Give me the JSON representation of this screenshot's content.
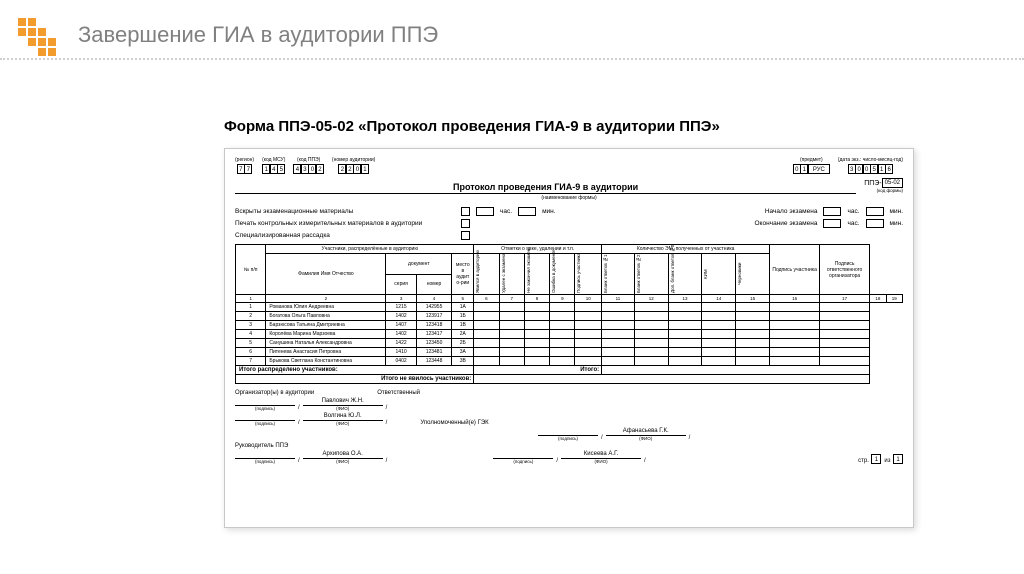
{
  "page": {
    "title": "Завершение ГИА в аудитории ППЭ",
    "form_caption": "Форма ППЭ-05-02 «Протокол проведения ГИА-9 в аудитории ППЭ»"
  },
  "header": {
    "region_label": "(регион)",
    "region": [
      "7",
      "7"
    ],
    "msu_label": "(код МСУ)",
    "msu": [
      "1",
      "4",
      "5"
    ],
    "ppe_label": "(код ППЭ)",
    "ppe": [
      "4",
      "3",
      "0",
      "2"
    ],
    "aud_label": "(номер аудитории)",
    "aud": [
      "2",
      "2",
      "0",
      "1"
    ],
    "subj_label": "(предмет)",
    "subj_code": [
      "0",
      "1"
    ],
    "subj_name": "РУС",
    "date_label": "(дата экз.: число-месяц-год)",
    "date": [
      "3",
      "0",
      "0",
      "5",
      "1",
      "6"
    ],
    "form_code_prefix": "ППЭ-",
    "form_code": "05-02",
    "form_code_sub": "(код формы)"
  },
  "protocol": {
    "title": "Протокол проведения ГИА-9 в аудитории",
    "subtitle": "(наименование формы)"
  },
  "info": {
    "opened": "Вскрыты экзаменационные материалы",
    "printed": "Печать контрольных измерительных материалов в аудитории",
    "spec": "Специализированная рассадка",
    "exam_start": "Начало экзамена",
    "exam_end": "Окончание экзамена",
    "hour": "час.",
    "min": "мин."
  },
  "table": {
    "h_participants": "Участники, распределённые в аудиторию",
    "h_marks": "Отметки о явке, удалении и т.п.",
    "h_em": "Количество ЭМ, полученных от участника",
    "h_np": "№ п/п",
    "h_fio": "Фамилия Имя Отчество",
    "h_doc": "документ",
    "h_seria": "серия",
    "h_nomer": "номер",
    "h_place": "место в аудит о-рии",
    "h_c1": "Явился в аудиторию",
    "h_c2": "Удален с экзамена",
    "h_c3": "Не закончил экзамен",
    "h_c4": "Ошибка в документе",
    "h_c5": "Подпись участника",
    "h_c6": "Бланк ответов №1",
    "h_c7": "Бланк ответов №2",
    "h_c8": "Доп. бланк ответов №2",
    "h_c9": "КИМ",
    "h_c10": "Черновики",
    "h_sig": "Подпись участника",
    "h_orgsig": "Подпись ответственного организатора",
    "cols": [
      "1",
      "2",
      "3",
      "4",
      "5",
      "6",
      "7",
      "8",
      "9",
      "10",
      "11",
      "12",
      "13",
      "14",
      "15",
      "16",
      "17",
      "18",
      "19"
    ],
    "rows": [
      {
        "n": "1",
        "fio": "Романова Юлия Андреевна",
        "s": "1215",
        "num": "142955",
        "p": "1А"
      },
      {
        "n": "2",
        "fio": "Богатова Ольга Павловна",
        "s": "1402",
        "num": "123917",
        "p": "1Б"
      },
      {
        "n": "3",
        "fio": "Барзюсова Татьяна Дмитриевна",
        "s": "1407",
        "num": "123418",
        "p": "1В"
      },
      {
        "n": "4",
        "fio": "Королёва Марина Марзоева",
        "s": "1402",
        "num": "123417",
        "p": "2А"
      },
      {
        "n": "5",
        "fio": "Санушина Наталья Александровна",
        "s": "1422",
        "num": "123450",
        "p": "2Б"
      },
      {
        "n": "6",
        "fio": "Питенева Анастасия Петровна",
        "s": "1410",
        "num": "123481",
        "p": "3А"
      },
      {
        "n": "7",
        "fio": "Брыкова Светлана Константиновна",
        "s": "0402",
        "num": "123448",
        "p": "3В"
      }
    ],
    "total_label_1": "Итого распределено участников:",
    "total_label_2": "Итого:",
    "total_label_3": "Итого не явилось участников:"
  },
  "sig": {
    "org_label": "Организатор(ы) в аудитории",
    "resp_label": "Ответственный",
    "org1": "Павлович Ж.Н.",
    "org2": "Волгина Ю.Л.",
    "gek_label": "Уполномоченный(е) ГЭК",
    "gek1": "Афанасьева Г.К.",
    "head_label": "Руководитель ППЭ",
    "head1": "Архипова О.А.",
    "head2": "Кисеева А.Г.",
    "podpis": "(подпись)",
    "fio": "(ФИО)"
  },
  "footer": {
    "str": "стр.",
    "p1": "1",
    "iz": "из",
    "p2": "1"
  }
}
